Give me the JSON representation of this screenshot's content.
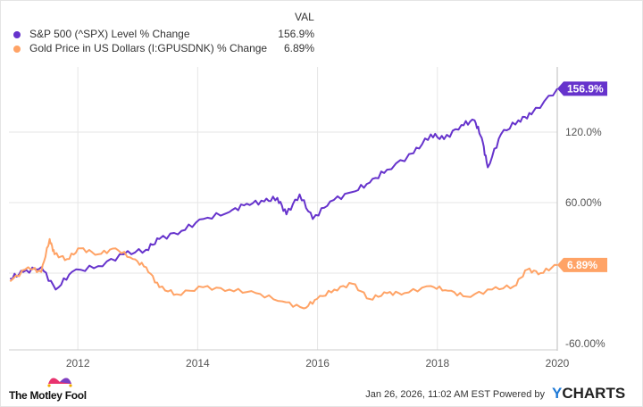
{
  "legend": {
    "value_header": "VAL",
    "items": [
      {
        "label": "S&P 500 (^SPX) Level % Change",
        "value": "156.9%",
        "color": "#6633cc"
      },
      {
        "label": "Gold Price in US Dollars (I:GPUSDNK) % Change",
        "value": "6.89%",
        "color": "#ffa366"
      }
    ]
  },
  "chart_data": {
    "type": "line",
    "xlabel": "",
    "ylabel": "",
    "x_ticks": [
      "2012",
      "2014",
      "2016",
      "2018",
      "2020"
    ],
    "y_ticks": [
      "120.0%",
      "60.00%",
      "-60.00%"
    ],
    "xlim": [
      2010.85,
      2020.0
    ],
    "ylim": [
      -66,
      175
    ],
    "grid": true,
    "y_axis_side": "right",
    "series": [
      {
        "name": "S&P 500 (^SPX) Level % Change",
        "color": "#6633cc",
        "end_label": "156.9%",
        "x": [
          2010.87,
          2011.09,
          2011.39,
          2011.63,
          2011.9,
          2012.34,
          2012.77,
          2013.14,
          2013.36,
          2013.73,
          2014.09,
          2014.53,
          2014.82,
          2015.11,
          2015.33,
          2015.48,
          2015.7,
          2015.92,
          2016.21,
          2016.58,
          2016.87,
          2017.16,
          2017.6,
          2017.89,
          2018.11,
          2018.4,
          2018.62,
          2018.74,
          2018.84,
          2019.06,
          2019.35,
          2019.57,
          2020.0
        ],
        "y": [
          -4.5,
          1,
          5,
          -14,
          1,
          6,
          16,
          20,
          29,
          36,
          46,
          52,
          59,
          61,
          64,
          50,
          67,
          46,
          61,
          69,
          77,
          88,
          102,
          118,
          114,
          126,
          130,
          115,
          90,
          118,
          130,
          135,
          156.9
        ]
      },
      {
        "name": "Gold Price in US Dollars (I:GPUSDNK) % Change",
        "color": "#ffa366",
        "end_label": "6.89%",
        "x": [
          2010.87,
          2011.17,
          2011.39,
          2011.53,
          2011.61,
          2011.82,
          2012.04,
          2012.34,
          2012.63,
          2012.92,
          2013.14,
          2013.36,
          2013.65,
          2014.09,
          2014.53,
          2014.97,
          2015.41,
          2015.77,
          2015.99,
          2016.28,
          2016.58,
          2016.87,
          2017.16,
          2017.45,
          2017.89,
          2018.18,
          2018.48,
          2018.91,
          2019.28,
          2019.5,
          2019.72,
          2020.0
        ],
        "y": [
          -7,
          5,
          1,
          29,
          16,
          12,
          21,
          16,
          21,
          12,
          5,
          -12,
          -18,
          -12,
          -14,
          -17,
          -24,
          -30,
          -22,
          -14,
          -9,
          -22,
          -17,
          -17,
          -11,
          -15,
          -20,
          -14,
          -11,
          3,
          0,
          6.89
        ]
      }
    ]
  },
  "footer": {
    "brand": "The Motley Fool",
    "timestamp": "Jan 26, 2026, 11:02 AM EST Powered by",
    "ycharts_y": "Y",
    "ycharts_rest": "CHARTS"
  }
}
